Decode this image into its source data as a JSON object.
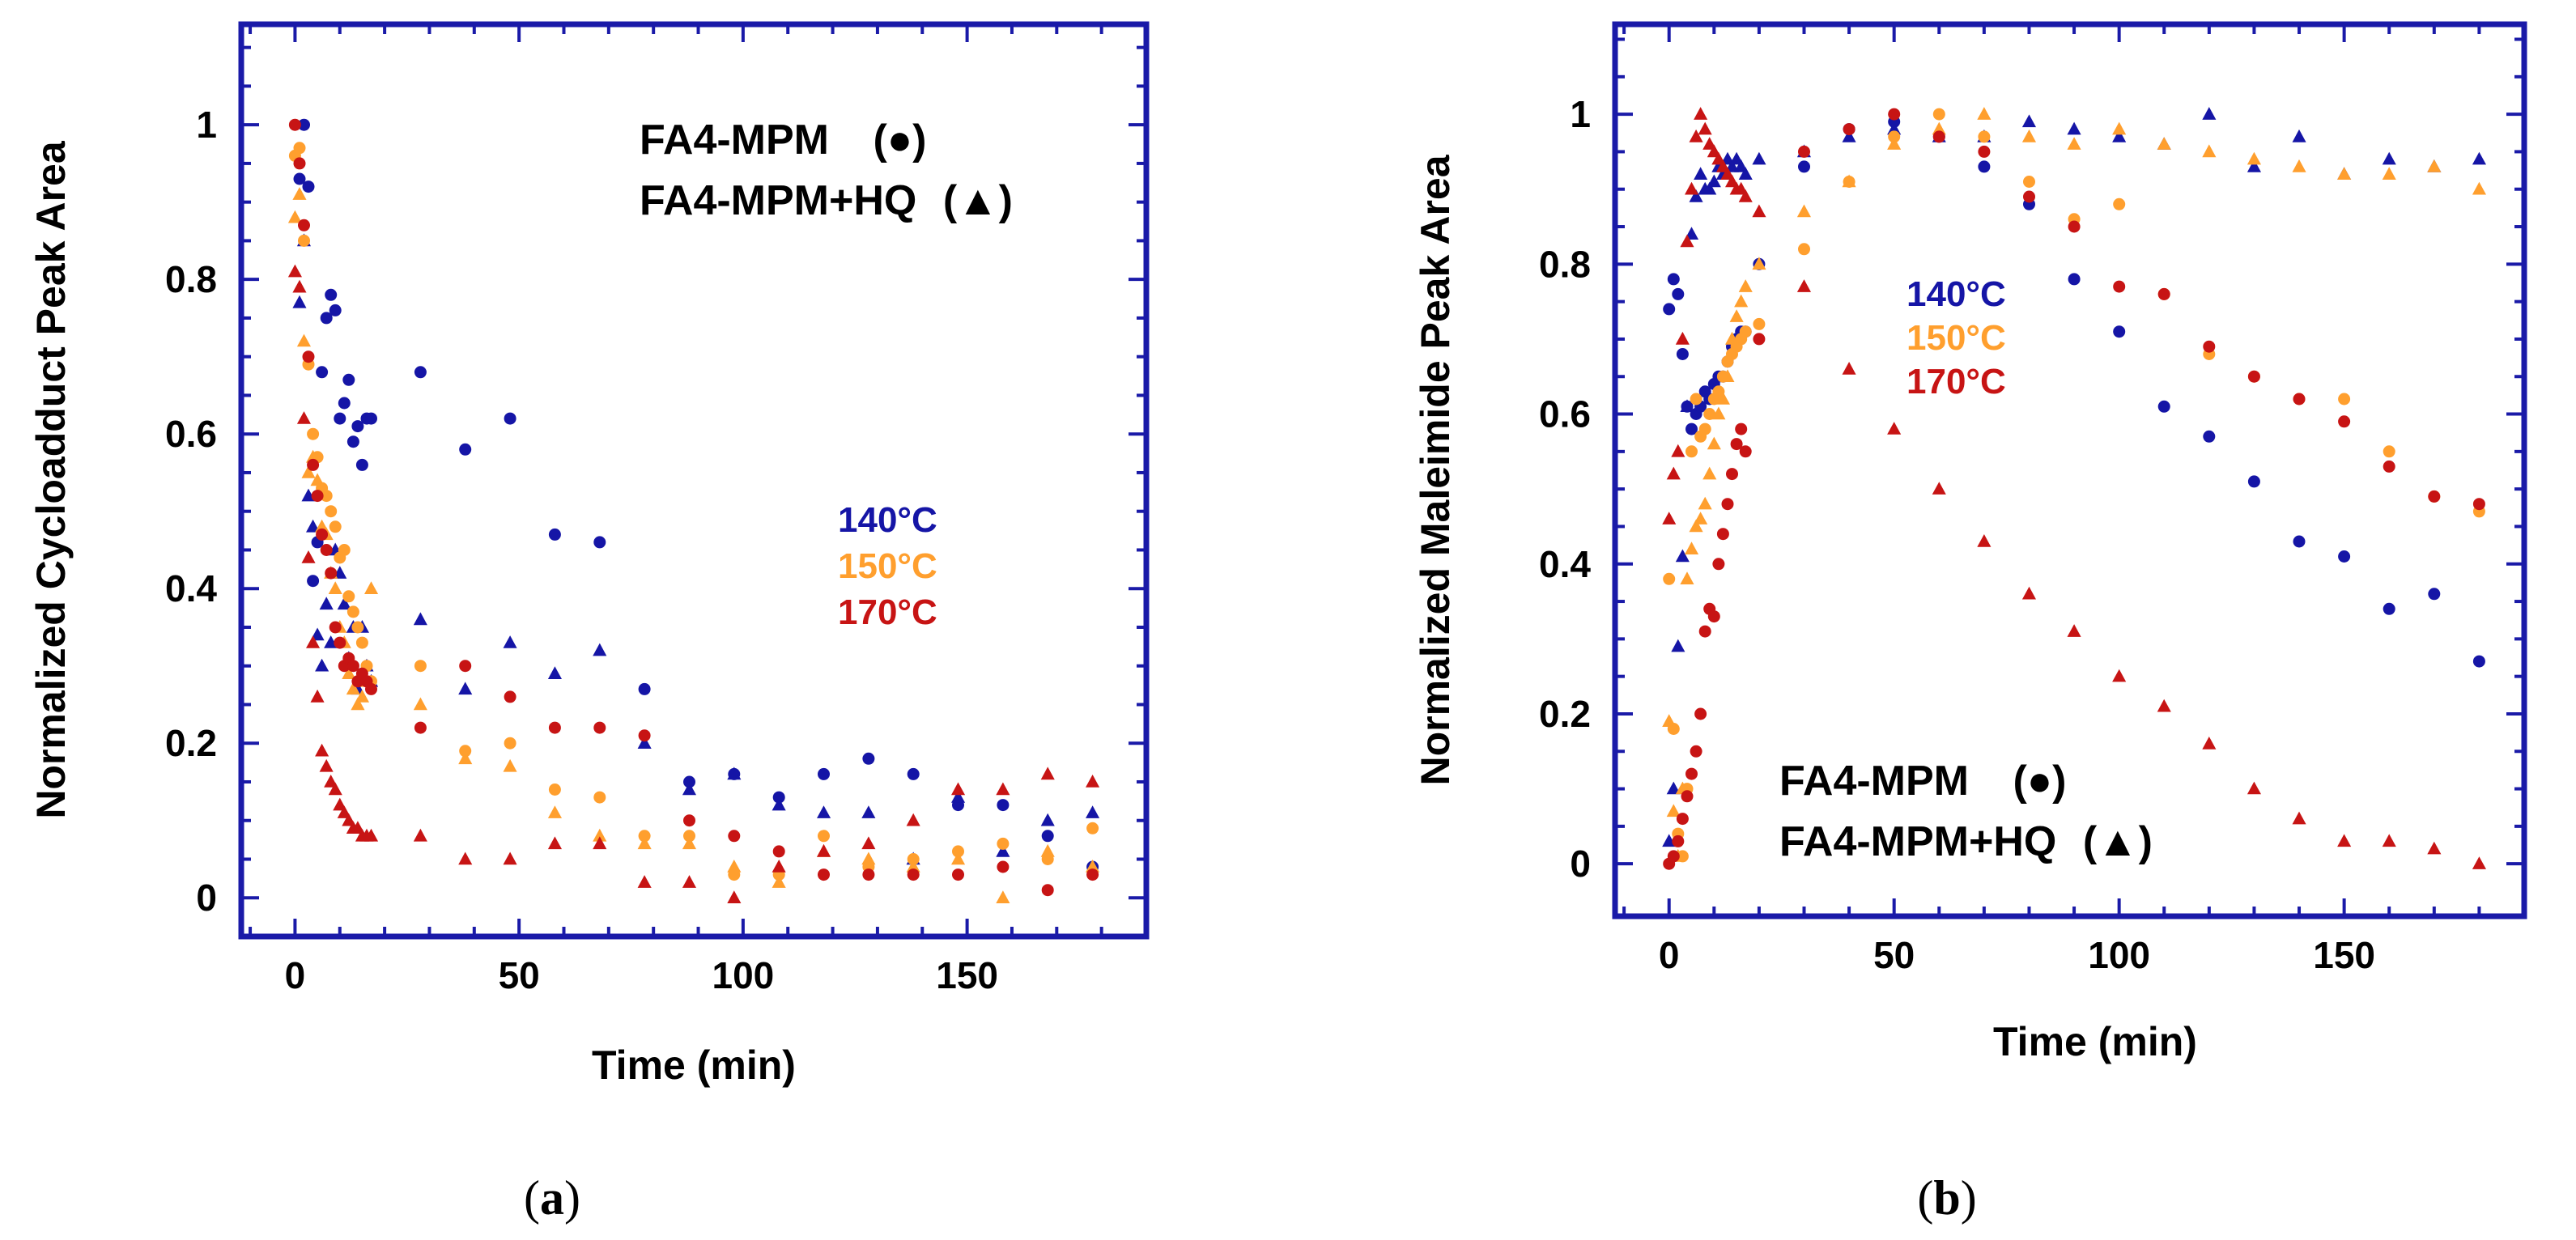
{
  "colors": {
    "axis": "#1a1aa8",
    "t140": "#1515a6",
    "t150": "#ff9f2e",
    "t170": "#c71414"
  },
  "chart_data": [
    {
      "type": "scatter",
      "panel_label": {
        "open": "(",
        "letter": "a",
        "close": ")"
      },
      "xlabel": "Time (min)",
      "ylabel": "Normalized Cycloadduct Peak Area",
      "xlim": [
        -12,
        190
      ],
      "ylim": [
        -0.05,
        1.13
      ],
      "xticks": [
        0,
        50,
        100,
        150
      ],
      "yticks": [
        0,
        0.2,
        0.4,
        0.6,
        0.8,
        1
      ],
      "ytick_labels": [
        "0",
        "0.2",
        "0.4",
        "0.6",
        "0.8",
        "1"
      ],
      "legend": {
        "entries": [
          {
            "name": "FA4-MPM",
            "symbol": "(●)"
          },
          {
            "name": "FA4-MPM+HQ",
            "symbol": "(▲)"
          }
        ],
        "placement": "top-right"
      },
      "temperature_labels": [
        "140°C",
        "150°C",
        "170°C"
      ],
      "series": [
        {
          "name": "FA4-MPM 140°C",
          "marker": "circle",
          "color": "#1515a6",
          "x": [
            1,
            2,
            3,
            4,
            5,
            6,
            7,
            8,
            9,
            10,
            11,
            12,
            13,
            14,
            15,
            16,
            17,
            28,
            38,
            48,
            58,
            68,
            78,
            88,
            98,
            108,
            118,
            128,
            138,
            148,
            158,
            168,
            178
          ],
          "y": [
            0.93,
            1.0,
            0.92,
            0.41,
            0.46,
            0.68,
            0.75,
            0.78,
            0.76,
            0.62,
            0.64,
            0.67,
            0.59,
            0.61,
            0.56,
            0.62,
            0.62,
            0.68,
            0.58,
            0.62,
            0.47,
            0.46,
            0.27,
            0.15,
            0.16,
            0.13,
            0.16,
            0.18,
            0.16,
            0.12,
            0.12,
            0.08,
            0.04
          ]
        },
        {
          "name": "FA4-MPM+HQ 140°C",
          "marker": "triangle",
          "color": "#1515a6",
          "x": [
            1,
            2,
            3,
            4,
            5,
            6,
            7,
            8,
            9,
            10,
            11,
            12,
            13,
            14,
            15,
            16,
            17,
            28,
            38,
            48,
            58,
            68,
            78,
            88,
            98,
            108,
            118,
            128,
            138,
            148,
            158,
            168,
            178
          ],
          "y": [
            0.77,
            0.85,
            0.52,
            0.48,
            0.34,
            0.3,
            0.38,
            0.33,
            0.45,
            0.42,
            0.38,
            0.31,
            0.35,
            0.27,
            0.35,
            0.3,
            0.28,
            0.36,
            0.27,
            0.33,
            0.29,
            0.32,
            0.2,
            0.14,
            0.16,
            0.12,
            0.11,
            0.11,
            0.05,
            0.13,
            0.06,
            0.1,
            0.11
          ]
        },
        {
          "name": "FA4-MPM 150°C",
          "marker": "circle",
          "color": "#ff9f2e",
          "x": [
            0,
            1,
            2,
            3,
            4,
            5,
            6,
            7,
            8,
            9,
            10,
            11,
            12,
            13,
            14,
            15,
            16,
            17,
            28,
            38,
            48,
            58,
            68,
            78,
            88,
            98,
            108,
            118,
            128,
            138,
            148,
            158,
            168,
            178
          ],
          "y": [
            0.96,
            0.97,
            0.85,
            0.69,
            0.6,
            0.57,
            0.53,
            0.52,
            0.5,
            0.48,
            0.44,
            0.45,
            0.39,
            0.37,
            0.35,
            0.33,
            0.3,
            0.28,
            0.3,
            0.19,
            0.2,
            0.14,
            0.13,
            0.08,
            0.08,
            0.03,
            0.03,
            0.08,
            0.04,
            0.05,
            0.06,
            0.07,
            0.05,
            0.09
          ]
        },
        {
          "name": "FA4-MPM+HQ 150°C",
          "marker": "triangle",
          "color": "#ff9f2e",
          "x": [
            0,
            1,
            2,
            3,
            4,
            5,
            6,
            7,
            8,
            9,
            10,
            11,
            12,
            13,
            14,
            15,
            16,
            17,
            28,
            38,
            48,
            58,
            68,
            78,
            88,
            98,
            108,
            118,
            128,
            138,
            148,
            158,
            168,
            178
          ],
          "y": [
            0.88,
            0.91,
            0.72,
            0.55,
            0.57,
            0.54,
            0.48,
            0.47,
            0.42,
            0.4,
            0.35,
            0.33,
            0.29,
            0.27,
            0.25,
            0.26,
            0.28,
            0.4,
            0.25,
            0.18,
            0.17,
            0.11,
            0.08,
            0.07,
            0.07,
            0.04,
            0.02,
            0.06,
            0.05,
            0.04,
            0.05,
            0.0,
            0.06,
            0.04
          ]
        },
        {
          "name": "FA4-MPM 170°C",
          "marker": "circle",
          "color": "#c71414",
          "x": [
            0,
            1,
            2,
            3,
            4,
            5,
            6,
            7,
            8,
            9,
            10,
            11,
            12,
            13,
            14,
            15,
            16,
            17,
            28,
            38,
            48,
            58,
            68,
            78,
            88,
            98,
            108,
            118,
            128,
            138,
            148,
            158,
            168,
            178
          ],
          "y": [
            1.0,
            0.95,
            0.87,
            0.7,
            0.56,
            0.52,
            0.47,
            0.45,
            0.42,
            0.35,
            0.33,
            0.3,
            0.31,
            0.3,
            0.28,
            0.29,
            0.28,
            0.27,
            0.22,
            0.3,
            0.26,
            0.22,
            0.22,
            0.21,
            0.1,
            0.08,
            0.06,
            0.03,
            0.03,
            0.03,
            0.03,
            0.04,
            0.01,
            0.03
          ]
        },
        {
          "name": "FA4-MPM+HQ 170°C",
          "marker": "triangle",
          "color": "#c71414",
          "x": [
            0,
            1,
            2,
            3,
            4,
            5,
            6,
            7,
            8,
            9,
            10,
            11,
            12,
            13,
            14,
            15,
            16,
            17,
            28,
            38,
            48,
            58,
            68,
            78,
            88,
            98,
            108,
            118,
            128,
            138,
            148,
            158,
            168,
            178
          ],
          "y": [
            0.81,
            0.79,
            0.62,
            0.44,
            0.33,
            0.26,
            0.19,
            0.17,
            0.15,
            0.14,
            0.12,
            0.11,
            0.1,
            0.09,
            0.09,
            0.08,
            0.08,
            0.08,
            0.08,
            0.05,
            0.05,
            0.07,
            0.07,
            0.02,
            0.02,
            0.0,
            0.04,
            0.06,
            0.07,
            0.1,
            0.14,
            0.14,
            0.16,
            0.15
          ]
        }
      ]
    },
    {
      "type": "scatter",
      "panel_label": {
        "open": "(",
        "letter": "b",
        "close": ")"
      },
      "xlabel": "Time (min)",
      "ylabel": "Normalized Maleimide Peak Area",
      "xlim": [
        -12,
        190
      ],
      "ylim": [
        -0.07,
        1.12
      ],
      "xticks": [
        0,
        50,
        100,
        150
      ],
      "yticks": [
        0,
        0.2,
        0.4,
        0.6,
        0.8,
        1
      ],
      "ytick_labels": [
        "0",
        "0.2",
        "0.4",
        "0.6",
        "0.8",
        "1"
      ],
      "legend": {
        "entries": [
          {
            "name": "FA4-MPM",
            "symbol": "(●)"
          },
          {
            "name": "FA4-MPM+HQ",
            "symbol": "(▲)"
          }
        ],
        "placement": "bottom-left"
      },
      "temperature_labels": [
        "140°C",
        "150°C",
        "170°C"
      ],
      "series": [
        {
          "name": "FA4-MPM 140°C",
          "marker": "circle",
          "color": "#1515a6",
          "x": [
            0,
            1,
            2,
            3,
            4,
            5,
            6,
            7,
            8,
            9,
            10,
            11,
            12,
            13,
            14,
            15,
            16,
            17,
            20,
            30,
            40,
            50,
            60,
            70,
            80,
            90,
            100,
            110,
            120,
            130,
            140,
            150,
            160,
            170,
            180
          ],
          "y": [
            0.74,
            0.78,
            0.76,
            0.68,
            0.61,
            0.58,
            0.6,
            0.61,
            0.63,
            0.62,
            0.64,
            0.65,
            0.65,
            0.67,
            0.69,
            0.7,
            0.71,
            0.71,
            0.8,
            0.93,
            0.98,
            0.99,
            0.97,
            0.93,
            0.88,
            0.78,
            0.71,
            0.61,
            0.57,
            0.51,
            0.43,
            0.41,
            0.34,
            0.36,
            0.27
          ]
        },
        {
          "name": "FA4-MPM+HQ 140°C",
          "marker": "triangle",
          "color": "#1515a6",
          "x": [
            0,
            1,
            2,
            3,
            4,
            5,
            6,
            7,
            8,
            9,
            10,
            11,
            12,
            13,
            14,
            15,
            16,
            17,
            20,
            30,
            40,
            50,
            60,
            70,
            80,
            90,
            100,
            110,
            120,
            130,
            140,
            150,
            160,
            170,
            180
          ],
          "y": [
            0.03,
            0.1,
            0.29,
            0.41,
            0.61,
            0.84,
            0.89,
            0.92,
            0.9,
            0.9,
            0.91,
            0.93,
            0.92,
            0.94,
            0.93,
            0.94,
            0.93,
            0.92,
            0.94,
            0.95,
            0.97,
            0.98,
            0.97,
            0.97,
            0.99,
            0.98,
            0.97,
            0.96,
            1.0,
            0.93,
            0.97,
            0.92,
            0.94,
            0.93,
            0.94
          ]
        },
        {
          "name": "FA4-MPM 150°C",
          "marker": "circle",
          "color": "#ff9f2e",
          "x": [
            0,
            1,
            2,
            3,
            4,
            5,
            6,
            7,
            8,
            9,
            10,
            11,
            12,
            13,
            14,
            15,
            16,
            17,
            20,
            30,
            40,
            50,
            60,
            70,
            80,
            90,
            100,
            110,
            120,
            130,
            140,
            150,
            160,
            170,
            180
          ],
          "y": [
            0.38,
            0.18,
            0.04,
            0.01,
            0.1,
            0.55,
            0.62,
            0.57,
            0.58,
            0.6,
            0.62,
            0.63,
            0.65,
            0.67,
            0.68,
            0.69,
            0.7,
            0.71,
            0.72,
            0.82,
            0.91,
            0.97,
            1.0,
            0.97,
            0.91,
            0.86,
            0.88,
            0.76,
            0.68,
            0.65,
            0.62,
            0.62,
            0.55,
            0.49,
            0.47
          ]
        },
        {
          "name": "FA4-MPM+HQ 150°C",
          "marker": "triangle",
          "color": "#ff9f2e",
          "x": [
            0,
            1,
            2,
            3,
            4,
            5,
            6,
            7,
            8,
            9,
            10,
            11,
            12,
            13,
            14,
            15,
            16,
            17,
            20,
            30,
            40,
            50,
            60,
            70,
            80,
            90,
            100,
            110,
            120,
            130,
            140,
            150,
            160,
            170,
            180
          ],
          "y": [
            0.19,
            0.07,
            0.01,
            0.1,
            0.38,
            0.42,
            0.45,
            0.46,
            0.48,
            0.52,
            0.56,
            0.6,
            0.62,
            0.65,
            0.7,
            0.73,
            0.75,
            0.77,
            0.8,
            0.87,
            0.91,
            0.96,
            0.98,
            1.0,
            0.97,
            0.96,
            0.98,
            0.96,
            0.95,
            0.94,
            0.93,
            0.92,
            0.92,
            0.93,
            0.9
          ]
        },
        {
          "name": "FA4-MPM 170°C",
          "marker": "circle",
          "color": "#c71414",
          "x": [
            0,
            1,
            2,
            3,
            4,
            5,
            6,
            7,
            8,
            9,
            10,
            11,
            12,
            13,
            14,
            15,
            16,
            17,
            20,
            30,
            40,
            50,
            60,
            70,
            80,
            90,
            100,
            110,
            120,
            130,
            140,
            150,
            160,
            170,
            180
          ],
          "y": [
            0.0,
            0.01,
            0.03,
            0.06,
            0.09,
            0.12,
            0.15,
            0.2,
            0.31,
            0.34,
            0.33,
            0.4,
            0.44,
            0.48,
            0.52,
            0.56,
            0.58,
            0.55,
            0.7,
            0.95,
            0.98,
            1.0,
            0.97,
            0.95,
            0.89,
            0.85,
            0.77,
            0.76,
            0.69,
            0.65,
            0.62,
            0.59,
            0.53,
            0.49,
            0.48
          ]
        },
        {
          "name": "FA4-MPM+HQ 170°C",
          "marker": "triangle",
          "color": "#c71414",
          "x": [
            0,
            1,
            2,
            3,
            4,
            5,
            6,
            7,
            8,
            9,
            10,
            11,
            12,
            13,
            14,
            15,
            16,
            17,
            20,
            30,
            40,
            50,
            60,
            70,
            80,
            90,
            100,
            110,
            120,
            130,
            140,
            150,
            160,
            170,
            180
          ],
          "y": [
            0.46,
            0.52,
            0.55,
            0.7,
            0.83,
            0.9,
            0.97,
            1.0,
            0.98,
            0.96,
            0.95,
            0.94,
            0.93,
            0.92,
            0.91,
            0.9,
            0.9,
            0.89,
            0.87,
            0.77,
            0.66,
            0.58,
            0.5,
            0.43,
            0.36,
            0.31,
            0.25,
            0.21,
            0.16,
            0.1,
            0.06,
            0.03,
            0.03,
            0.02,
            0.0
          ]
        }
      ]
    }
  ]
}
